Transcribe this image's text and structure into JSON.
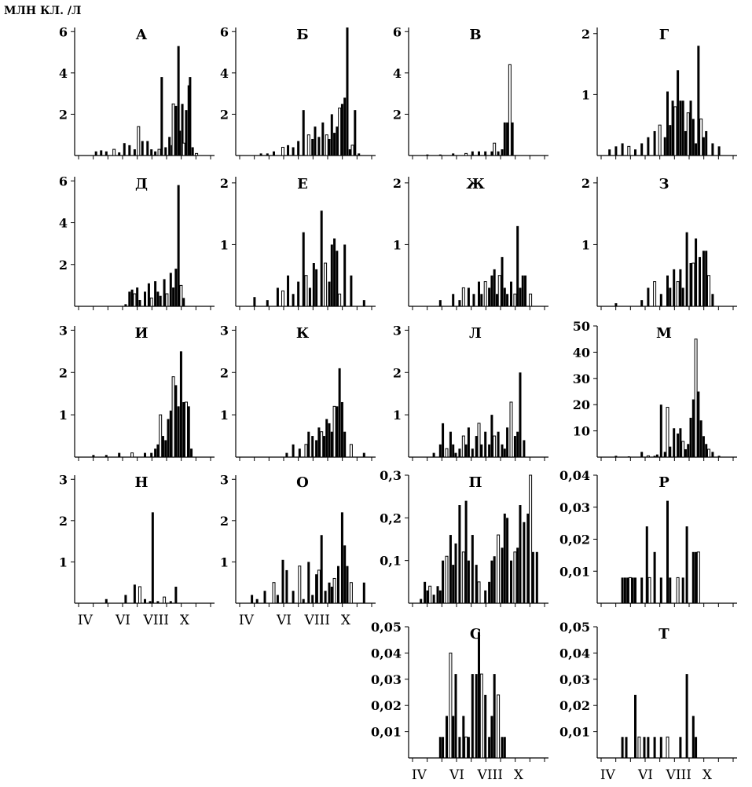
{
  "figure": {
    "unit_label": "МЛН КЛ. /Л",
    "month_labels": [
      "IV",
      "VI",
      "VIII",
      "X"
    ]
  },
  "chart_data": [
    {
      "type": "bar",
      "title": "А",
      "ylabel": "МЛН КЛ. /Л",
      "yticks": [
        "2",
        "4",
        "6"
      ],
      "ylim": [
        0,
        6.2
      ],
      "x": [
        0.12,
        0.16,
        0.2,
        0.26,
        0.3,
        0.34,
        0.38,
        0.42,
        0.45,
        0.48,
        0.52,
        0.55,
        0.58,
        0.61,
        0.63,
        0.66,
        0.69,
        0.71,
        0.72,
        0.74,
        0.76,
        0.77,
        0.79,
        0.8,
        0.82,
        0.84,
        0.85,
        0.87,
        0.9
      ],
      "values": [
        0.2,
        0.25,
        0.2,
        0.3,
        0.15,
        0.6,
        0.5,
        0.3,
        1.4,
        0.7,
        0.7,
        0.3,
        0.2,
        0.3,
        3.8,
        0.4,
        0.9,
        0.5,
        2.5,
        2.4,
        5.3,
        1.2,
        2.5,
        0.6,
        2.2,
        3.4,
        3.8,
        0.4,
        0.1
      ]
    },
    {
      "type": "bar",
      "title": "Б",
      "yticks": [
        "2",
        "4",
        "6"
      ],
      "ylim": [
        0,
        6.2
      ],
      "x": [
        0.15,
        0.2,
        0.25,
        0.32,
        0.36,
        0.4,
        0.44,
        0.48,
        0.52,
        0.55,
        0.57,
        0.6,
        0.63,
        0.66,
        0.68,
        0.7,
        0.72,
        0.74,
        0.76,
        0.78,
        0.8,
        0.82,
        0.84,
        0.86,
        0.88,
        0.91
      ],
      "values": [
        0.1,
        0.1,
        0.2,
        0.4,
        0.5,
        0.4,
        0.7,
        2.2,
        1.0,
        0.8,
        1.4,
        0.9,
        1.6,
        1.0,
        0.8,
        2.0,
        1.1,
        1.4,
        2.3,
        2.5,
        2.8,
        6.2,
        0.3,
        0.5,
        2.2,
        0.1
      ]
    },
    {
      "type": "bar",
      "title": "В",
      "yticks": [
        "2",
        "4",
        "6"
      ],
      "ylim": [
        0,
        6.2
      ],
      "x": [
        0.1,
        0.2,
        0.3,
        0.4,
        0.45,
        0.5,
        0.55,
        0.6,
        0.62,
        0.65,
        0.68,
        0.7,
        0.72,
        0.74,
        0.76
      ],
      "values": [
        0.05,
        0.05,
        0.1,
        0.1,
        0.2,
        0.2,
        0.2,
        0.2,
        0.6,
        0.2,
        0.3,
        1.6,
        1.6,
        4.4,
        1.6
      ]
    },
    {
      "type": "bar",
      "title": "Г",
      "yticks": [
        "1",
        "2"
      ],
      "ylim": [
        0,
        2.1
      ],
      "x": [
        0.05,
        0.1,
        0.15,
        0.2,
        0.25,
        0.3,
        0.35,
        0.4,
        0.44,
        0.48,
        0.5,
        0.52,
        0.54,
        0.56,
        0.58,
        0.6,
        0.62,
        0.64,
        0.66,
        0.68,
        0.7,
        0.72,
        0.74,
        0.76,
        0.78,
        0.8,
        0.85,
        0.9
      ],
      "values": [
        0.1,
        0.15,
        0.2,
        0.15,
        0.1,
        0.2,
        0.3,
        0.4,
        0.5,
        0.3,
        1.05,
        0.5,
        0.9,
        0.8,
        1.4,
        0.9,
        0.9,
        0.4,
        0.7,
        0.9,
        0.6,
        0.2,
        1.8,
        0.6,
        0.3,
        0.4,
        0.2,
        0.15
      ]
    },
    {
      "type": "bar",
      "title": "Д",
      "yticks": [
        "2",
        "4",
        "6"
      ],
      "ylim": [
        0,
        6.2
      ],
      "x": [
        0.35,
        0.38,
        0.4,
        0.42,
        0.44,
        0.46,
        0.5,
        0.53,
        0.55,
        0.58,
        0.6,
        0.62,
        0.65,
        0.67,
        0.7,
        0.72,
        0.74,
        0.76,
        0.78,
        0.8
      ],
      "values": [
        0.1,
        0.7,
        0.8,
        0.6,
        0.9,
        0.3,
        0.7,
        1.1,
        0.4,
        1.2,
        0.7,
        0.5,
        1.3,
        0.6,
        1.6,
        0.9,
        1.8,
        5.8,
        1.0,
        0.4
      ]
    },
    {
      "type": "bar",
      "title": "Е",
      "yticks": [
        "1",
        "2"
      ],
      "ylim": [
        0,
        2.1
      ],
      "x": [
        0.1,
        0.2,
        0.28,
        0.32,
        0.36,
        0.4,
        0.44,
        0.48,
        0.5,
        0.53,
        0.56,
        0.58,
        0.62,
        0.65,
        0.68,
        0.7,
        0.72,
        0.74,
        0.76,
        0.8,
        0.85,
        0.95
      ],
      "values": [
        0.15,
        0.1,
        0.3,
        0.25,
        0.5,
        0.2,
        0.4,
        1.2,
        0.5,
        0.3,
        0.7,
        0.6,
        1.55,
        0.7,
        0.4,
        1.0,
        1.1,
        0.9,
        0.2,
        1.0,
        0.5,
        0.1
      ]
    },
    {
      "type": "bar",
      "title": "Ж",
      "yticks": [
        "1",
        "2"
      ],
      "ylim": [
        0,
        2.1
      ],
      "x": [
        0.2,
        0.3,
        0.35,
        0.38,
        0.42,
        0.46,
        0.5,
        0.52,
        0.55,
        0.58,
        0.6,
        0.62,
        0.64,
        0.66,
        0.68,
        0.7,
        0.72,
        0.75,
        0.78,
        0.8,
        0.82,
        0.84,
        0.86,
        0.9
      ],
      "values": [
        0.1,
        0.2,
        0.1,
        0.3,
        0.3,
        0.2,
        0.4,
        0.2,
        0.4,
        0.3,
        0.5,
        0.6,
        0.2,
        0.5,
        0.8,
        0.3,
        0.2,
        0.4,
        0.2,
        1.3,
        0.3,
        0.5,
        0.5,
        0.2
      ]
    },
    {
      "type": "bar",
      "title": "З",
      "yticks": [
        "1",
        "2"
      ],
      "ylim": [
        0,
        2.1
      ],
      "x": [
        0.1,
        0.3,
        0.35,
        0.4,
        0.45,
        0.5,
        0.52,
        0.55,
        0.58,
        0.6,
        0.62,
        0.65,
        0.68,
        0.7,
        0.72,
        0.75,
        0.78,
        0.8,
        0.82,
        0.85
      ],
      "values": [
        0.05,
        0.1,
        0.3,
        0.4,
        0.2,
        0.5,
        0.3,
        0.6,
        0.4,
        0.6,
        0.3,
        1.2,
        0.7,
        0.7,
        1.1,
        0.8,
        0.9,
        0.9,
        0.5,
        0.2
      ]
    },
    {
      "type": "bar",
      "title": "И",
      "yticks": [
        "1",
        "2",
        "3"
      ],
      "ylim": [
        0,
        3.1
      ],
      "x": [
        0.1,
        0.2,
        0.3,
        0.4,
        0.5,
        0.55,
        0.58,
        0.6,
        0.62,
        0.64,
        0.66,
        0.68,
        0.7,
        0.72,
        0.74,
        0.76,
        0.78,
        0.8,
        0.82,
        0.84,
        0.86
      ],
      "values": [
        0.05,
        0.05,
        0.1,
        0.1,
        0.1,
        0.1,
        0.2,
        0.3,
        1.0,
        0.5,
        0.4,
        0.9,
        1.1,
        1.9,
        1.7,
        1.2,
        2.5,
        1.3,
        1.3,
        1.2,
        0.2
      ]
    },
    {
      "type": "bar",
      "title": "К",
      "yticks": [
        "1",
        "2",
        "3"
      ],
      "ylim": [
        0,
        3.1
      ],
      "x": [
        0.35,
        0.4,
        0.45,
        0.5,
        0.52,
        0.55,
        0.58,
        0.6,
        0.62,
        0.64,
        0.66,
        0.68,
        0.7,
        0.72,
        0.74,
        0.76,
        0.78,
        0.8,
        0.85,
        0.95
      ],
      "values": [
        0.1,
        0.3,
        0.2,
        0.3,
        0.6,
        0.5,
        0.4,
        0.7,
        0.6,
        0.5,
        0.9,
        0.8,
        0.6,
        1.2,
        1.2,
        2.1,
        1.3,
        0.6,
        0.3,
        0.1
      ]
    },
    {
      "type": "bar",
      "title": "Л",
      "yticks": [
        "1",
        "2",
        "3"
      ],
      "ylim": [
        0,
        3.1
      ],
      "x": [
        0.15,
        0.2,
        0.22,
        0.25,
        0.28,
        0.3,
        0.32,
        0.35,
        0.38,
        0.4,
        0.42,
        0.45,
        0.48,
        0.5,
        0.52,
        0.55,
        0.58,
        0.6,
        0.62,
        0.65,
        0.68,
        0.7,
        0.72,
        0.75,
        0.78,
        0.8,
        0.82,
        0.85
      ],
      "values": [
        0.1,
        0.3,
        0.8,
        0.2,
        0.6,
        0.3,
        0.1,
        0.2,
        0.5,
        0.3,
        0.7,
        0.2,
        0.5,
        0.8,
        0.3,
        0.6,
        0.3,
        1.0,
        0.5,
        0.6,
        0.3,
        0.2,
        0.7,
        1.3,
        0.5,
        0.6,
        2.0,
        0.4
      ]
    },
    {
      "type": "bar",
      "title": "М",
      "yticks": [
        "10",
        "20",
        "30",
        "40",
        "50"
      ],
      "ylim": [
        0,
        50
      ],
      "x": [
        0.1,
        0.2,
        0.3,
        0.35,
        0.4,
        0.42,
        0.45,
        0.48,
        0.5,
        0.52,
        0.55,
        0.58,
        0.6,
        0.62,
        0.64,
        0.66,
        0.68,
        0.7,
        0.72,
        0.74,
        0.76,
        0.78,
        0.8,
        0.82,
        0.85,
        0.9
      ],
      "values": [
        0.5,
        0.3,
        2.0,
        0.5,
        0.5,
        1.0,
        20.0,
        2.0,
        19.0,
        4.0,
        11.0,
        9.0,
        11.0,
        6.0,
        3.0,
        5.0,
        15.0,
        22.0,
        45.0,
        25.0,
        14.0,
        8.0,
        5.0,
        3.0,
        2.0,
        0.5
      ]
    },
    {
      "type": "bar",
      "title": "Н",
      "yticks": [
        "1",
        "2",
        "3"
      ],
      "ylim": [
        0,
        3.1
      ],
      "x": [
        0.2,
        0.35,
        0.42,
        0.46,
        0.5,
        0.54,
        0.56,
        0.6,
        0.65,
        0.7,
        0.74
      ],
      "values": [
        0.1,
        0.2,
        0.45,
        0.4,
        0.1,
        0.05,
        2.2,
        0.05,
        0.15,
        0.05,
        0.4
      ]
    },
    {
      "type": "bar",
      "title": "О",
      "yticks": [
        "1",
        "2",
        "3"
      ],
      "ylim": [
        0,
        3.1
      ],
      "x": [
        0.08,
        0.12,
        0.18,
        0.25,
        0.28,
        0.32,
        0.35,
        0.4,
        0.45,
        0.48,
        0.52,
        0.55,
        0.58,
        0.6,
        0.62,
        0.65,
        0.68,
        0.7,
        0.72,
        0.75,
        0.78,
        0.8,
        0.82,
        0.85,
        0.95
      ],
      "values": [
        0.2,
        0.1,
        0.3,
        0.5,
        0.2,
        1.05,
        0.8,
        0.3,
        0.9,
        0.1,
        1.0,
        0.2,
        0.7,
        0.8,
        1.65,
        0.3,
        0.5,
        0.4,
        0.6,
        0.9,
        2.2,
        1.4,
        0.9,
        0.5,
        0.5
      ]
    },
    {
      "type": "bar",
      "title": "П",
      "yticks": [
        "0,1",
        "0,2",
        "0,3"
      ],
      "ylim": [
        0,
        0.3
      ],
      "x": [
        0.05,
        0.08,
        0.1,
        0.12,
        0.15,
        0.18,
        0.2,
        0.22,
        0.25,
        0.28,
        0.3,
        0.32,
        0.35,
        0.38,
        0.4,
        0.42,
        0.45,
        0.48,
        0.5,
        0.55,
        0.58,
        0.6,
        0.62,
        0.65,
        0.68,
        0.7,
        0.72,
        0.75,
        0.78,
        0.8,
        0.82,
        0.85,
        0.88,
        0.9,
        0.92,
        0.95
      ],
      "values": [
        0.01,
        0.05,
        0.03,
        0.04,
        0.02,
        0.04,
        0.03,
        0.1,
        0.11,
        0.16,
        0.09,
        0.14,
        0.23,
        0.12,
        0.24,
        0.1,
        0.16,
        0.09,
        0.05,
        0.03,
        0.05,
        0.1,
        0.11,
        0.16,
        0.13,
        0.21,
        0.2,
        0.1,
        0.12,
        0.13,
        0.23,
        0.19,
        0.21,
        0.3,
        0.12,
        0.12
      ]
    },
    {
      "type": "bar",
      "title": "Р",
      "yticks": [
        "0,01",
        "0,02",
        "0,03",
        "0,04"
      ],
      "ylim": [
        0,
        0.04
      ],
      "x": [
        0.15,
        0.17,
        0.19,
        0.21,
        0.23,
        0.25,
        0.3,
        0.34,
        0.36,
        0.4,
        0.45,
        0.5,
        0.52,
        0.58,
        0.62,
        0.65,
        0.7,
        0.72,
        0.74
      ],
      "values": [
        0.008,
        0.008,
        0.008,
        0.008,
        0.008,
        0.008,
        0.008,
        0.024,
        0.008,
        0.016,
        0.008,
        0.032,
        0.008,
        0.008,
        0.008,
        0.024,
        0.016,
        0.016,
        0.016
      ]
    },
    {
      "type": "bar",
      "title": "С",
      "yticks": [
        "0,01",
        "0,02",
        "0,03",
        "0,04",
        "0,05"
      ],
      "ylim": [
        0,
        0.05
      ],
      "x": [
        0.2,
        0.22,
        0.25,
        0.28,
        0.3,
        0.32,
        0.35,
        0.38,
        0.4,
        0.42,
        0.45,
        0.48,
        0.5,
        0.52,
        0.55,
        0.58,
        0.6,
        0.62,
        0.65,
        0.68,
        0.7
      ],
      "values": [
        0.008,
        0.008,
        0.016,
        0.04,
        0.016,
        0.032,
        0.008,
        0.016,
        0.008,
        0.008,
        0.032,
        0.032,
        0.048,
        0.032,
        0.024,
        0.008,
        0.016,
        0.032,
        0.024,
        0.008,
        0.008
      ]
    },
    {
      "type": "bar",
      "title": "Т",
      "yticks": [
        "0,01",
        "0,02",
        "0,03",
        "0,04",
        "0,05"
      ],
      "ylim": [
        0,
        0.05
      ],
      "x": [
        0.15,
        0.18,
        0.25,
        0.28,
        0.32,
        0.35,
        0.4,
        0.45,
        0.5,
        0.6,
        0.65,
        0.7,
        0.72
      ],
      "values": [
        0.008,
        0.008,
        0.024,
        0.008,
        0.008,
        0.008,
        0.008,
        0.008,
        0.008,
        0.008,
        0.032,
        0.016,
        0.008
      ]
    }
  ]
}
